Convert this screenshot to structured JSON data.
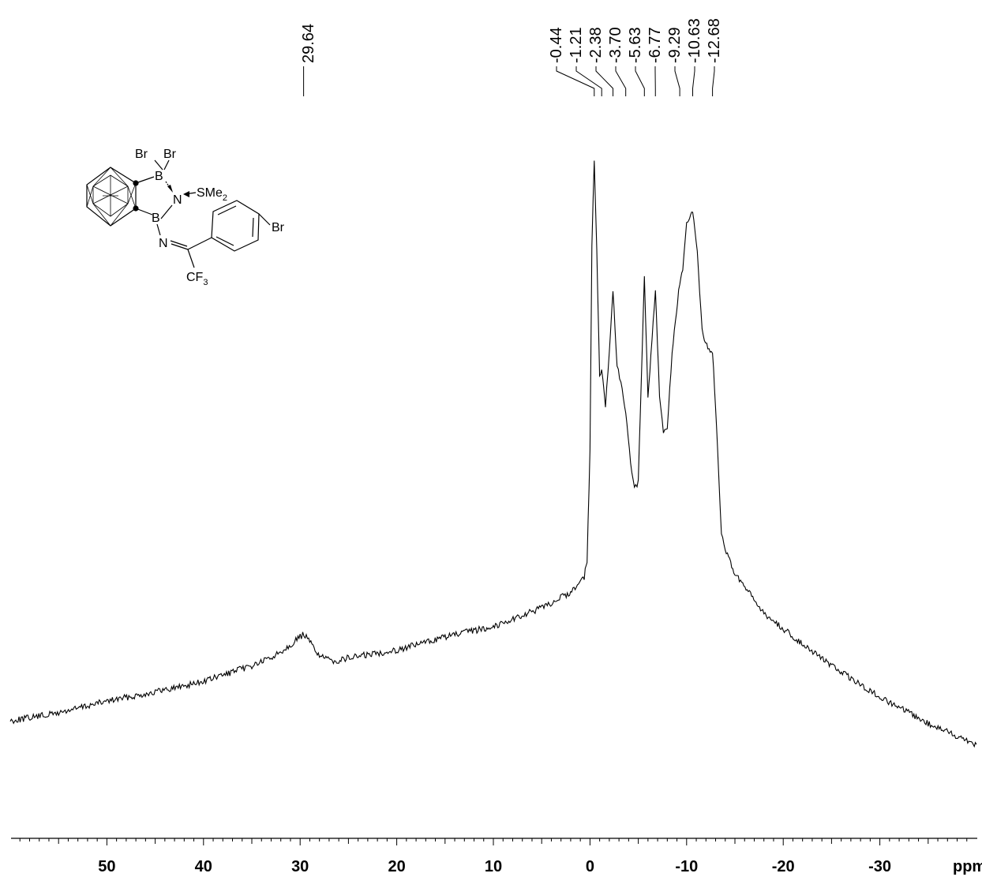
{
  "chart_data": {
    "type": "line",
    "title": "",
    "xlabel": "ppm",
    "ylabel": "",
    "xlim": [
      60,
      -40
    ],
    "x_reversed": true,
    "x_major_ticks": [
      50,
      40,
      30,
      20,
      10,
      0,
      -10,
      -20,
      -30
    ],
    "x_tick_labels": [
      "50",
      "40",
      "30",
      "20",
      "10",
      "0",
      "-10",
      "-20",
      "-30"
    ],
    "grid": false,
    "peak_labels": [
      "29.64",
      "-0.44",
      "-1.21",
      "-2.38",
      "-3.70",
      "-5.63",
      "-6.77",
      "-9.29",
      "-10.63",
      "-12.68"
    ],
    "series": [
      {
        "x": [
          60,
          55,
          50,
          45,
          40,
          35,
          33,
          31,
          30,
          29.6,
          29,
          28,
          27,
          26,
          25,
          20,
          15,
          10,
          5,
          2,
          0.6,
          0.3,
          0,
          -0.2,
          -0.44,
          -0.7,
          -1.0,
          -1.21,
          -1.6,
          -2.0,
          -2.38,
          -2.8,
          -3.2,
          -3.7,
          -4.2,
          -4.6,
          -5.0,
          -5.3,
          -5.63,
          -6.0,
          -6.3,
          -6.77,
          -7.2,
          -7.6,
          -8.0,
          -8.5,
          -9.29,
          -9.6,
          -10.0,
          -10.63,
          -11.1,
          -11.6,
          -12.2,
          -12.68,
          -13.2,
          -13.6,
          -14.0,
          -15,
          -18,
          -20,
          -25,
          -30,
          -35,
          -40
        ],
        "y": [
          0.31,
          0.34,
          0.385,
          0.42,
          0.46,
          0.52,
          0.55,
          0.6,
          0.63,
          0.64,
          0.61,
          0.56,
          0.54,
          0.54,
          0.55,
          0.58,
          0.63,
          0.67,
          0.74,
          0.8,
          0.86,
          0.92,
          1.35,
          2.12,
          2.45,
          2.1,
          1.62,
          1.66,
          1.5,
          1.72,
          1.95,
          1.66,
          1.6,
          1.48,
          1.3,
          1.2,
          1.22,
          1.6,
          2.0,
          1.55,
          1.7,
          1.96,
          1.55,
          1.4,
          1.43,
          1.72,
          1.98,
          2.03,
          2.2,
          2.25,
          2.1,
          1.8,
          1.73,
          1.72,
          1.35,
          1.03,
          0.96,
          0.87,
          0.72,
          0.66,
          0.52,
          0.4,
          0.3,
          0.22
        ]
      }
    ]
  },
  "structure": {
    "atoms": [
      "Br",
      "Br",
      "B",
      "B",
      "N",
      "SMe",
      "2",
      "N",
      "Br",
      "CF",
      "3"
    ]
  }
}
